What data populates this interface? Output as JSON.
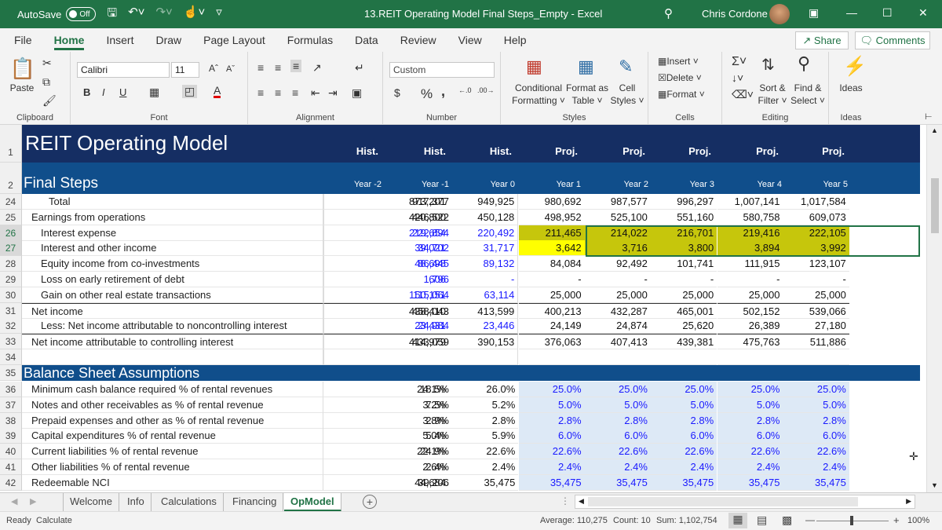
{
  "titlebar": {
    "autosave_label": "AutoSave",
    "autosave_state": "Off",
    "doc_title": "13.REIT Operating Model Final Steps_Empty  -  Excel",
    "user_name": "Chris Cordone"
  },
  "menu": {
    "tabs": [
      "File",
      "Home",
      "Insert",
      "Draw",
      "Page Layout",
      "Formulas",
      "Data",
      "Review",
      "View",
      "Help"
    ],
    "share": "Share",
    "comments": "Comments"
  },
  "ribbon": {
    "clipboard": {
      "paste": "Paste",
      "label": "Clipboard"
    },
    "font": {
      "name": "Calibri",
      "size": "11",
      "label": "Font",
      "bold": "B",
      "italic": "I",
      "underline": "U"
    },
    "alignment": {
      "label": "Alignment"
    },
    "number": {
      "format": "Custom",
      "label": "Number",
      "currency": "$",
      "percent": "%",
      "comma": ","
    },
    "styles": {
      "conditional": "Conditional",
      "formatting": "Formatting",
      "format_as": "Format as",
      "table": "Table",
      "cell": "Cell",
      "styles": "Styles",
      "label": "Styles"
    },
    "cells": {
      "insert": "Insert",
      "delete": "Delete",
      "format": "Format",
      "label": "Cells"
    },
    "editing": {
      "sort": "Sort &",
      "filter": "Filter",
      "find": "Find &",
      "select": "Select",
      "label": "Editing"
    },
    "ideas": {
      "ideas": "Ideas",
      "label": "Ideas"
    }
  },
  "sheet": {
    "title": "REIT Operating Model",
    "subtitle": "Final Steps",
    "section2": "Balance Sheet Assumptions",
    "col_types": [
      "Hist.",
      "Hist.",
      "Hist.",
      "Proj.",
      "Proj.",
      "Proj.",
      "Proj.",
      "Proj."
    ],
    "col_years": [
      "Year -2",
      "Year -1",
      "Year 0",
      "Year 1",
      "Year 2",
      "Year 3",
      "Year 4",
      "Year 5"
    ],
    "rows": [
      {
        "n": "24",
        "label": "Total",
        "indent": 2,
        "vals": [
          "873,201",
          "917,377",
          "949,925",
          "980,692",
          "987,577",
          "996,297",
          "1,007,141",
          "1,017,584"
        ],
        "style": "black"
      },
      {
        "n": "25",
        "label": "Earnings from operations",
        "indent": 1,
        "vals": [
          "420,800",
          "446,522",
          "450,128",
          "498,952",
          "525,100",
          "551,160",
          "580,758",
          "609,073"
        ],
        "style": "black"
      },
      {
        "n": "26",
        "label": "Interest expense",
        "indent": 2,
        "vals": [
          "219,654",
          "222,894",
          "220,492",
          "211,465",
          "214,022",
          "216,701",
          "219,416",
          "222,105"
        ],
        "style": "blue",
        "hl": true
      },
      {
        "n": "27",
        "label": "Interest and other income",
        "indent": 2,
        "vals": [
          "39,021",
          "34,702",
          "31,717",
          "3,642",
          "3,716",
          "3,800",
          "3,894",
          "3,992"
        ],
        "style": "blue",
        "hl": true
      },
      {
        "n": "28",
        "label": "Equity income from co-investments",
        "indent": 2,
        "vals": [
          "48,698",
          "86,445",
          "89,132",
          "84,084",
          "92,492",
          "101,741",
          "111,915",
          "123,107"
        ],
        "style": "blue"
      },
      {
        "n": "29",
        "label": "Loss on early retirement of debt",
        "indent": 2,
        "vals": [
          "606",
          "1,796",
          "-",
          "-",
          "-",
          "-",
          "-",
          "-"
        ],
        "style": "blue"
      },
      {
        "n": "30",
        "label": "Gain on other real estate transactions",
        "indent": 2,
        "vals": [
          "150,151",
          "115,064",
          "63,114",
          "25,000",
          "25,000",
          "25,000",
          "25,000",
          "25,000"
        ],
        "style": "blue"
      },
      {
        "n": "31",
        "label": "Net income",
        "indent": 1,
        "vals": [
          "438,410",
          "458,043",
          "413,599",
          "400,213",
          "432,287",
          "465,001",
          "502,152",
          "539,066"
        ],
        "style": "black"
      },
      {
        "n": "32",
        "label": "Less: Net income attributable to noncontrolling interest",
        "indent": 2,
        "vals": [
          "23,431",
          "24,984",
          "23,446",
          "24,149",
          "24,874",
          "25,620",
          "26,389",
          "27,180"
        ],
        "style": "blue"
      },
      {
        "n": "33",
        "label": "Net income attributable to controlling interest",
        "indent": 1,
        "vals": [
          "414,979",
          "433,059",
          "390,153",
          "376,063",
          "407,413",
          "439,381",
          "475,763",
          "511,886"
        ],
        "style": "black"
      },
      {
        "n": "34",
        "label": "",
        "indent": 1,
        "vals": [
          "",
          "",
          "",
          "",
          "",
          "",
          "",
          ""
        ],
        "style": "black"
      }
    ],
    "bs_rows": [
      {
        "n": "36",
        "label": "Minimum cash balance required % of rental revenues",
        "vals": [
          "24.1%",
          "18.5%",
          "26.0%",
          "25.0%",
          "25.0%",
          "25.0%",
          "25.0%",
          "25.0%"
        ]
      },
      {
        "n": "37",
        "label": "Notes and other receivables as % of rental revenue",
        "vals": [
          "3.2%",
          "7.5%",
          "5.2%",
          "5.0%",
          "5.0%",
          "5.0%",
          "5.0%",
          "5.0%"
        ]
      },
      {
        "n": "38",
        "label": "Prepaid expenses and other as % of rental revenue",
        "vals": [
          "3.8%",
          "2.9%",
          "2.8%",
          "2.8%",
          "2.8%",
          "2.8%",
          "2.8%",
          "2.8%"
        ]
      },
      {
        "n": "39",
        "label": "Capital expenditures % of rental revenue",
        "vals": [
          "5.0%",
          "5.4%",
          "5.9%",
          "6.0%",
          "6.0%",
          "6.0%",
          "6.0%",
          "6.0%"
        ]
      },
      {
        "n": "40",
        "label": "Current liabilities % of rental revenue",
        "vals": [
          "22.1%",
          "24.9%",
          "22.6%",
          "22.6%",
          "22.6%",
          "22.6%",
          "22.6%",
          "22.6%"
        ]
      },
      {
        "n": "41",
        "label": "Other liabilities % of rental revenue",
        "vals": [
          "2.6%",
          "2.4%",
          "2.4%",
          "2.4%",
          "2.4%",
          "2.4%",
          "2.4%",
          "2.4%"
        ]
      },
      {
        "n": "42",
        "label": "Redeemable NCI",
        "vals": [
          "44,684",
          "39,206",
          "35,475",
          "35,475",
          "35,475",
          "35,475",
          "35,475",
          "35,475"
        ]
      }
    ]
  },
  "sheet_tabs": [
    "Welcome",
    "Info",
    "Calculations",
    "Financing",
    "OpModel"
  ],
  "status": {
    "ready": "Ready",
    "calculate": "Calculate",
    "average": "Average: 110,275",
    "count": "Count: 10",
    "sum": "Sum: 1,102,754",
    "zoom": "100%"
  },
  "colors": {
    "excel_green": "#217346",
    "navy": "#152e63",
    "blue_band": "#104e8b",
    "input_blue": "#1a1aff",
    "highlight_olive": "#c6c60c",
    "highlight_yellow": "#ffff00",
    "proj_fill": "#dde9f6"
  }
}
